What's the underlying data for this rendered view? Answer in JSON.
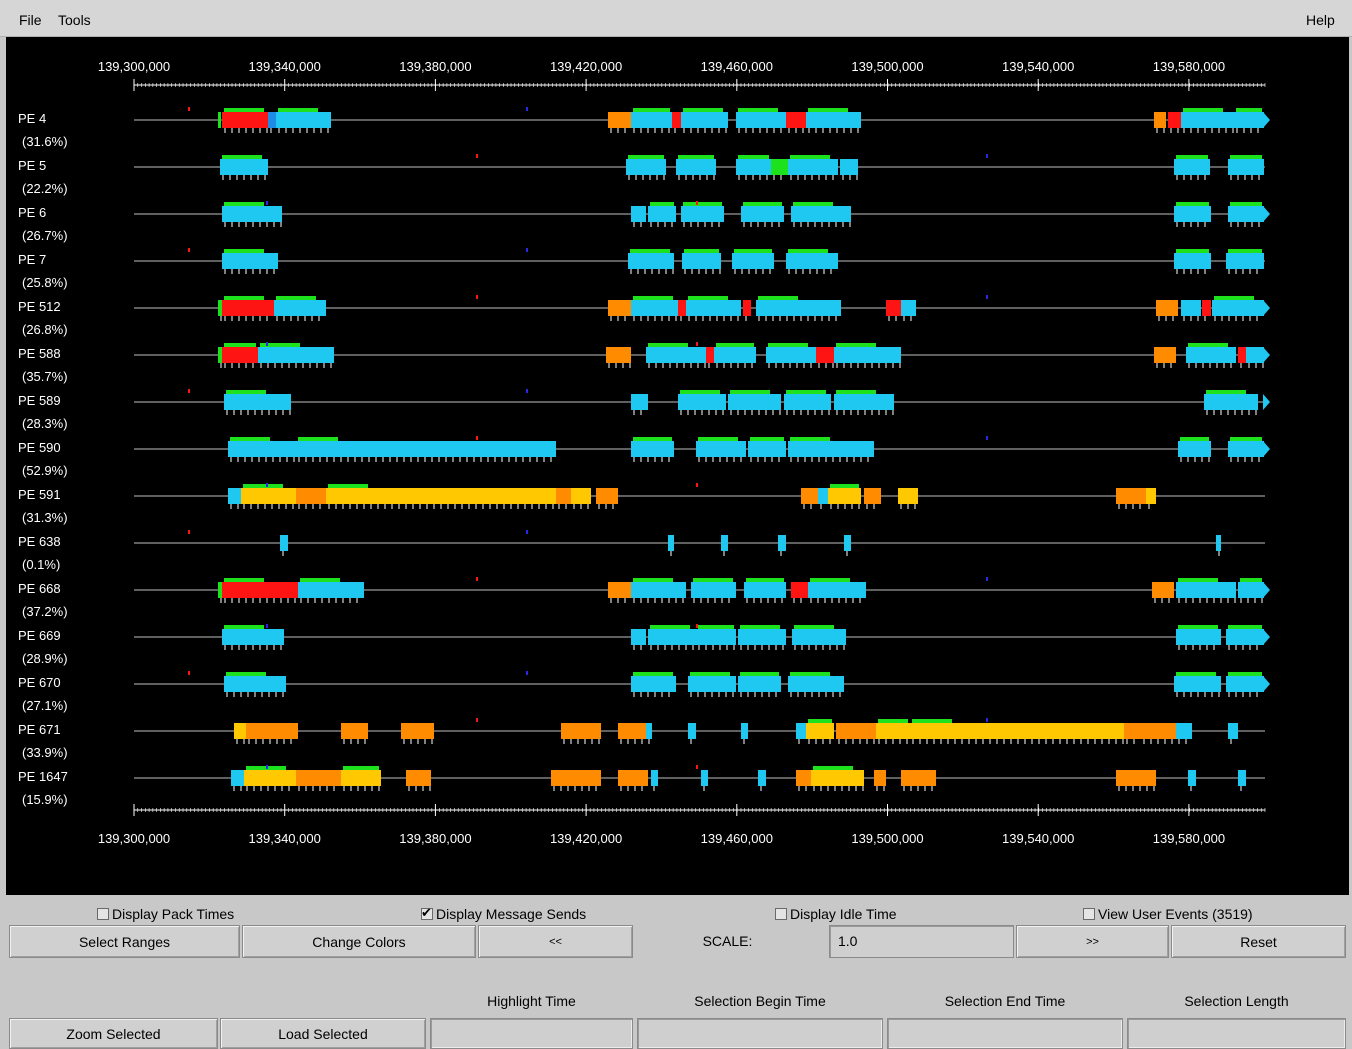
{
  "menu": {
    "file": "File",
    "tools": "Tools",
    "help": "Help"
  },
  "axis": {
    "top_ticks": [
      "139,300,000",
      "139,340,000",
      "139,380,000",
      "139,420,000",
      "139,460,000",
      "139,500,000",
      "139,540,000",
      "139,580,000"
    ],
    "bottom_ticks": [
      "139,300,000",
      "139,340,000",
      "139,380,000",
      "139,420,000",
      "139,460,000",
      "139,500,000",
      "139,540,000",
      "139,580,000"
    ]
  },
  "colors": {
    "background": "#000000",
    "cyan": "#1ec8f0",
    "blue": "#1e8ce6",
    "red": "#ff1414",
    "green": "#1ee11e",
    "orange": "#ff8c00",
    "yellow": "#ffc800",
    "white": "#ffffff",
    "line": "#bfbfbf"
  },
  "rows": [
    {
      "pe": "PE 4",
      "pct": "(31.6%)"
    },
    {
      "pe": "PE 5",
      "pct": "(22.2%)"
    },
    {
      "pe": "PE 6",
      "pct": "(26.7%)"
    },
    {
      "pe": "PE 7",
      "pct": "(25.8%)"
    },
    {
      "pe": "PE 512",
      "pct": "(26.8%)"
    },
    {
      "pe": "PE 588",
      "pct": "(35.7%)"
    },
    {
      "pe": "PE 589",
      "pct": "(28.3%)"
    },
    {
      "pe": "PE 590",
      "pct": "(52.9%)"
    },
    {
      "pe": "PE 591",
      "pct": "(31.3%)"
    },
    {
      "pe": "PE 638",
      "pct": "(0.1%)"
    },
    {
      "pe": "PE 668",
      "pct": "(37.2%)"
    },
    {
      "pe": "PE 669",
      "pct": "(28.9%)"
    },
    {
      "pe": "PE 670",
      "pct": "(27.1%)"
    },
    {
      "pe": "PE 671",
      "pct": "(33.9%)"
    },
    {
      "pe": "PE 1647",
      "pct": "(15.9%)"
    }
  ],
  "checkboxes": {
    "pack_times": {
      "label": "Display Pack Times",
      "checked": false
    },
    "message_sends": {
      "label": "Display Message Sends",
      "checked": true
    },
    "idle_time": {
      "label": "Display Idle Time",
      "checked": false
    },
    "user_events": {
      "label": "View User Events (3519)",
      "checked": false
    }
  },
  "buttons": {
    "select_ranges": "Select Ranges",
    "change_colors": "Change Colors",
    "prev": "<<",
    "next": ">>",
    "reset": "Reset",
    "zoom_selected": "Zoom Selected",
    "load_selected": "Load Selected"
  },
  "scale": {
    "label": "SCALE:",
    "value": "1.0"
  },
  "info_labels": {
    "highlight_time": "Highlight Time",
    "selection_begin": "Selection Begin Time",
    "selection_end": "Selection End Time",
    "selection_length": "Selection Length"
  }
}
